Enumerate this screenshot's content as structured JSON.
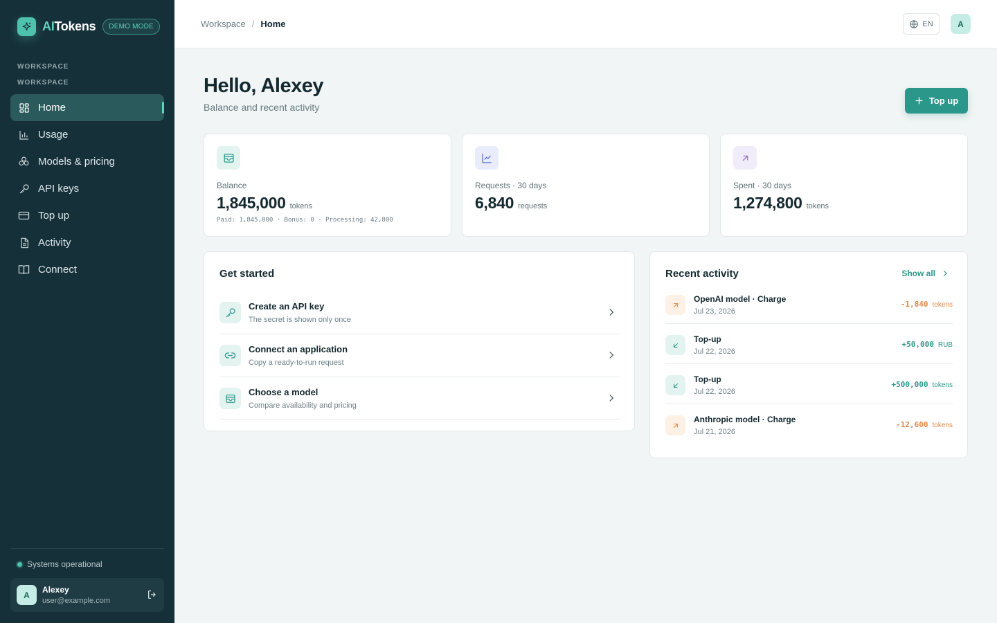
{
  "brand": {
    "name_prefix": "AI",
    "name_suffix": "Tokens",
    "badge": "DEMO MODE"
  },
  "sidebar": {
    "section_1": "WORKSPACE",
    "section_2": "WORKSPACE",
    "items": [
      {
        "label": "Home",
        "icon": "dashboard-grid-icon",
        "active": true
      },
      {
        "label": "Usage",
        "icon": "bar-chart-icon"
      },
      {
        "label": "Models & pricing",
        "icon": "models-cluster-icon"
      },
      {
        "label": "API keys",
        "icon": "key-icon"
      },
      {
        "label": "Top up",
        "icon": "credit-card-icon"
      },
      {
        "label": "Activity",
        "icon": "document-icon"
      },
      {
        "label": "Connect",
        "icon": "book-icon"
      }
    ],
    "status": "Systems operational",
    "user": {
      "initial": "A",
      "name": "Alexey",
      "email": "user@example.com"
    }
  },
  "header": {
    "breadcrumb": {
      "root": "Workspace",
      "separator": "/",
      "current": "Home"
    },
    "language": "EN",
    "avatar_initial": "A"
  },
  "main": {
    "greeting": "Hello, Alexey",
    "subtitle": "Balance and recent activity",
    "topup_button": "Top up",
    "stats": [
      {
        "label": "Balance",
        "value": "1,845,000",
        "unit": "tokens",
        "footer": "Paid: 1,845,000 · Bonus: 0 · Processing: 42,800",
        "icon": "wallet-icon"
      },
      {
        "label": "Requests · 30 days",
        "value": "6,840",
        "unit": "requests",
        "icon": "line-chart-icon"
      },
      {
        "label": "Spent · 30 days",
        "value": "1,274,800",
        "unit": "tokens",
        "icon": "arrow-up-right-icon"
      }
    ],
    "get_started": {
      "title": "Get started",
      "items": [
        {
          "title": "Create an API key",
          "subtitle": "The secret is shown only once",
          "icon": "key-icon"
        },
        {
          "title": "Connect an application",
          "subtitle": "Copy a ready-to-run request",
          "icon": "link-icon"
        },
        {
          "title": "Choose a model",
          "subtitle": "Compare availability and pricing",
          "icon": "wallet-icon"
        }
      ]
    },
    "recent_activity": {
      "title": "Recent activity",
      "show_all": "Show all",
      "items": [
        {
          "title": "OpenAI model · Charge",
          "date": "Jul 23, 2026",
          "amount": "-1,840",
          "unit": "tokens",
          "direction": "out"
        },
        {
          "title": "Top-up",
          "date": "Jul 22, 2026",
          "amount": "+50,000",
          "unit": "RUB",
          "direction": "in"
        },
        {
          "title": "Top-up",
          "date": "Jul 22, 2026",
          "amount": "+500,000",
          "unit": "tokens",
          "direction": "in"
        },
        {
          "title": "Anthropic model · Charge",
          "date": "Jul 21, 2026",
          "amount": "-12,600",
          "unit": "tokens",
          "direction": "out"
        }
      ]
    }
  },
  "colors": {
    "sidebar_bg": "#16303a",
    "accent": "#2b978a",
    "accent_light": "#5fd3bd",
    "negative": "#e0894a",
    "page_bg": "#f1f5f5"
  }
}
